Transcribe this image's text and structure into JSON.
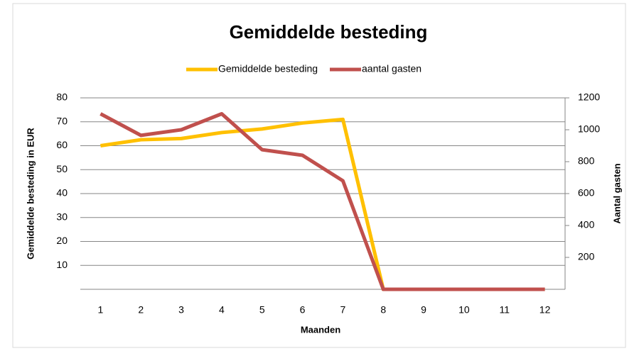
{
  "chart_data": {
    "type": "line",
    "title": "Gemiddelde besteding",
    "categories": [
      "1",
      "2",
      "3",
      "4",
      "5",
      "6",
      "7",
      "8",
      "9",
      "10",
      "11",
      "12"
    ],
    "series": [
      {
        "name": "Gemiddelde besteding",
        "color": "#FFC000",
        "values": [
          60,
          62.5,
          63,
          65.5,
          67,
          69.5,
          71,
          0,
          0,
          0,
          0,
          0
        ]
      },
      {
        "name": "aantal gasten",
        "color": "#C0504D",
        "axis": "y2",
        "values": [
          1100,
          965,
          1000,
          1100,
          875,
          840,
          680,
          0,
          0,
          0,
          0,
          0
        ]
      }
    ],
    "xlabel": "Maanden",
    "ylabel": "Gemiddelde besteding in EUR",
    "y2label": "Aantal gasten",
    "ylim": [
      0,
      80
    ],
    "yticks": [
      10,
      20,
      30,
      40,
      50,
      60,
      70,
      80
    ],
    "y2lim": [
      0,
      1200
    ],
    "y2ticks": [
      200,
      400,
      600,
      800,
      1000,
      1200
    ],
    "grid": true,
    "legend": "top"
  }
}
